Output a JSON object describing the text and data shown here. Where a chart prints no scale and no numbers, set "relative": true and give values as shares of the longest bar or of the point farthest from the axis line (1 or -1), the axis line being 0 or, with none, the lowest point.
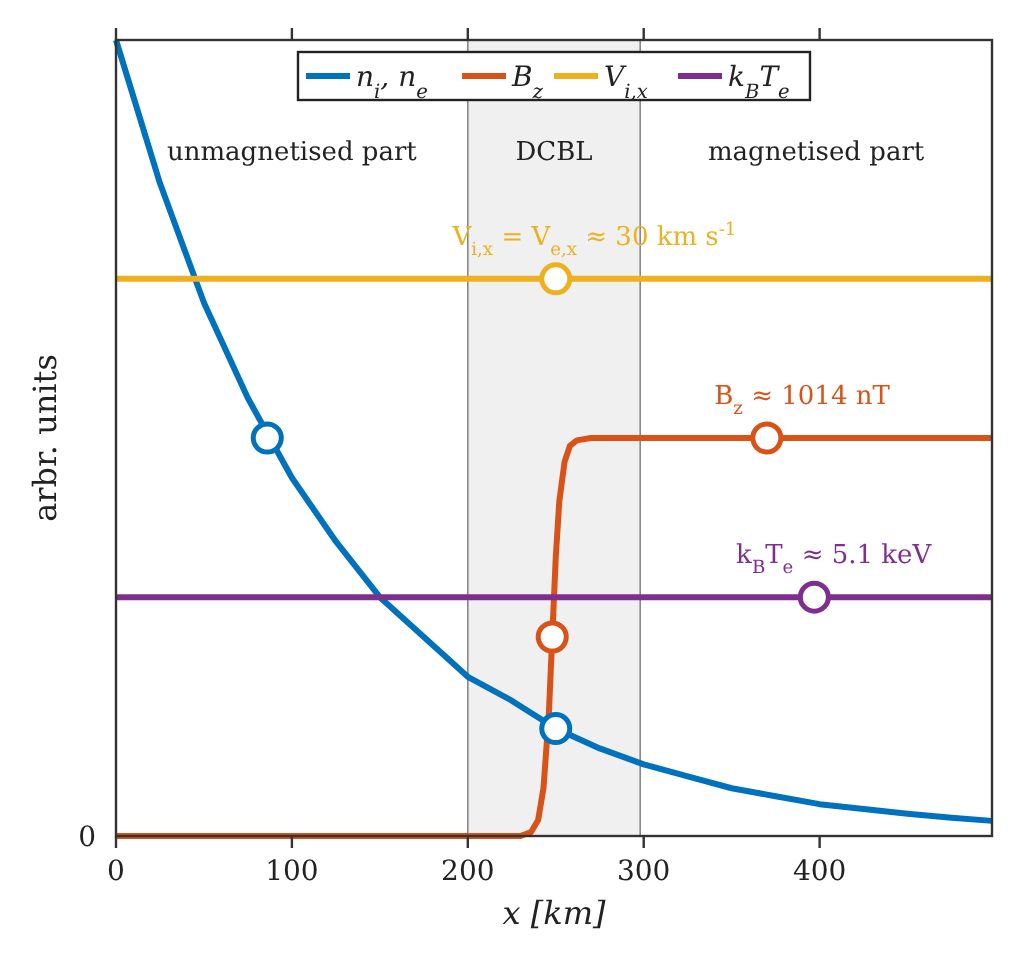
{
  "chart_data": {
    "type": "line",
    "relative": true,
    "xlabel": "x [km]",
    "ylabel": "arbr. units",
    "xlim": [
      0,
      498
    ],
    "xticks": [
      0,
      100,
      200,
      300,
      400
    ],
    "grid": false,
    "legend": "top",
    "marker": "none",
    "line_style": "solid",
    "series": [
      {
        "name": "n$_{i}$, n$_{e}$",
        "color": "#0072bd",
        "x": [
          0,
          25,
          50,
          75,
          100,
          125,
          150,
          175,
          200,
          225,
          250,
          275,
          300,
          325,
          350,
          375,
          400,
          425,
          450,
          475,
          498
        ],
        "values": [
          1,
          0.82,
          0.67,
          0.55,
          0.45,
          0.37,
          0.3,
          0.25,
          0.2,
          0.17,
          0.135,
          0.11,
          0.09,
          0.075,
          0.06,
          0.05,
          0.04,
          0.034,
          0.028,
          0.023,
          0.019
        ]
      },
      {
        "name": "B$_{z}$",
        "color": "#d95319",
        "x": [
          0,
          230,
          236,
          240,
          243,
          246,
          248,
          250,
          252,
          255,
          258,
          262,
          270,
          498
        ],
        "values": [
          0,
          0,
          0.005,
          0.02,
          0.06,
          0.15,
          0.25,
          0.35,
          0.42,
          0.47,
          0.49,
          0.497,
          0.5,
          0.5
        ]
      },
      {
        "name": "V$_{i,x}$",
        "color": "#edb120",
        "x": [
          0,
          498
        ],
        "values": [
          0.7,
          0.7
        ]
      },
      {
        "name": "k$_{B}$T$_{e}$",
        "color": "#7e2f8e",
        "x": [
          0,
          498
        ],
        "values": [
          0.3,
          0.3
        ]
      },
      {
        "type": "scatter",
        "marker": "circle",
        "color": "#0072bd",
        "x": [
          86,
          250
        ],
        "values": [
          0.5,
          0.135
        ]
      },
      {
        "type": "scatter",
        "marker": "circle",
        "color": "#d95319",
        "x": [
          248,
          370
        ],
        "values": [
          0.25,
          0.5
        ]
      },
      {
        "type": "scatter",
        "marker": "circle",
        "color": "#edb120",
        "x": [
          250
        ],
        "values": [
          0.7
        ]
      },
      {
        "type": "scatter",
        "marker": "circle",
        "color": "#7e2f8e",
        "x": [
          397
        ],
        "values": [
          0.3
        ]
      }
    ],
    "bands": [
      {
        "axis": "x",
        "from": 200,
        "to": 298,
        "label": "DCBL",
        "color": "#f0f0f0"
      }
    ],
    "annotations": [
      "unmagnetised part",
      "magnetised part",
      {
        "text": "V$_{i,x}$ = V$_{e,x}$ ≈ 30 km s$^{-1}$",
        "x": 272,
        "y": 0.7
      },
      {
        "text": "B$_{z}$ ≈ 1014 nT",
        "x": 390,
        "y": 0.5
      },
      {
        "text": "k$_{B}$T$_{e}$ ≈ 5.1 keV",
        "x": 408,
        "y": 0.3
      },
      {
        "text": "0",
        "x": 0,
        "y": 0
      }
    ]
  }
}
